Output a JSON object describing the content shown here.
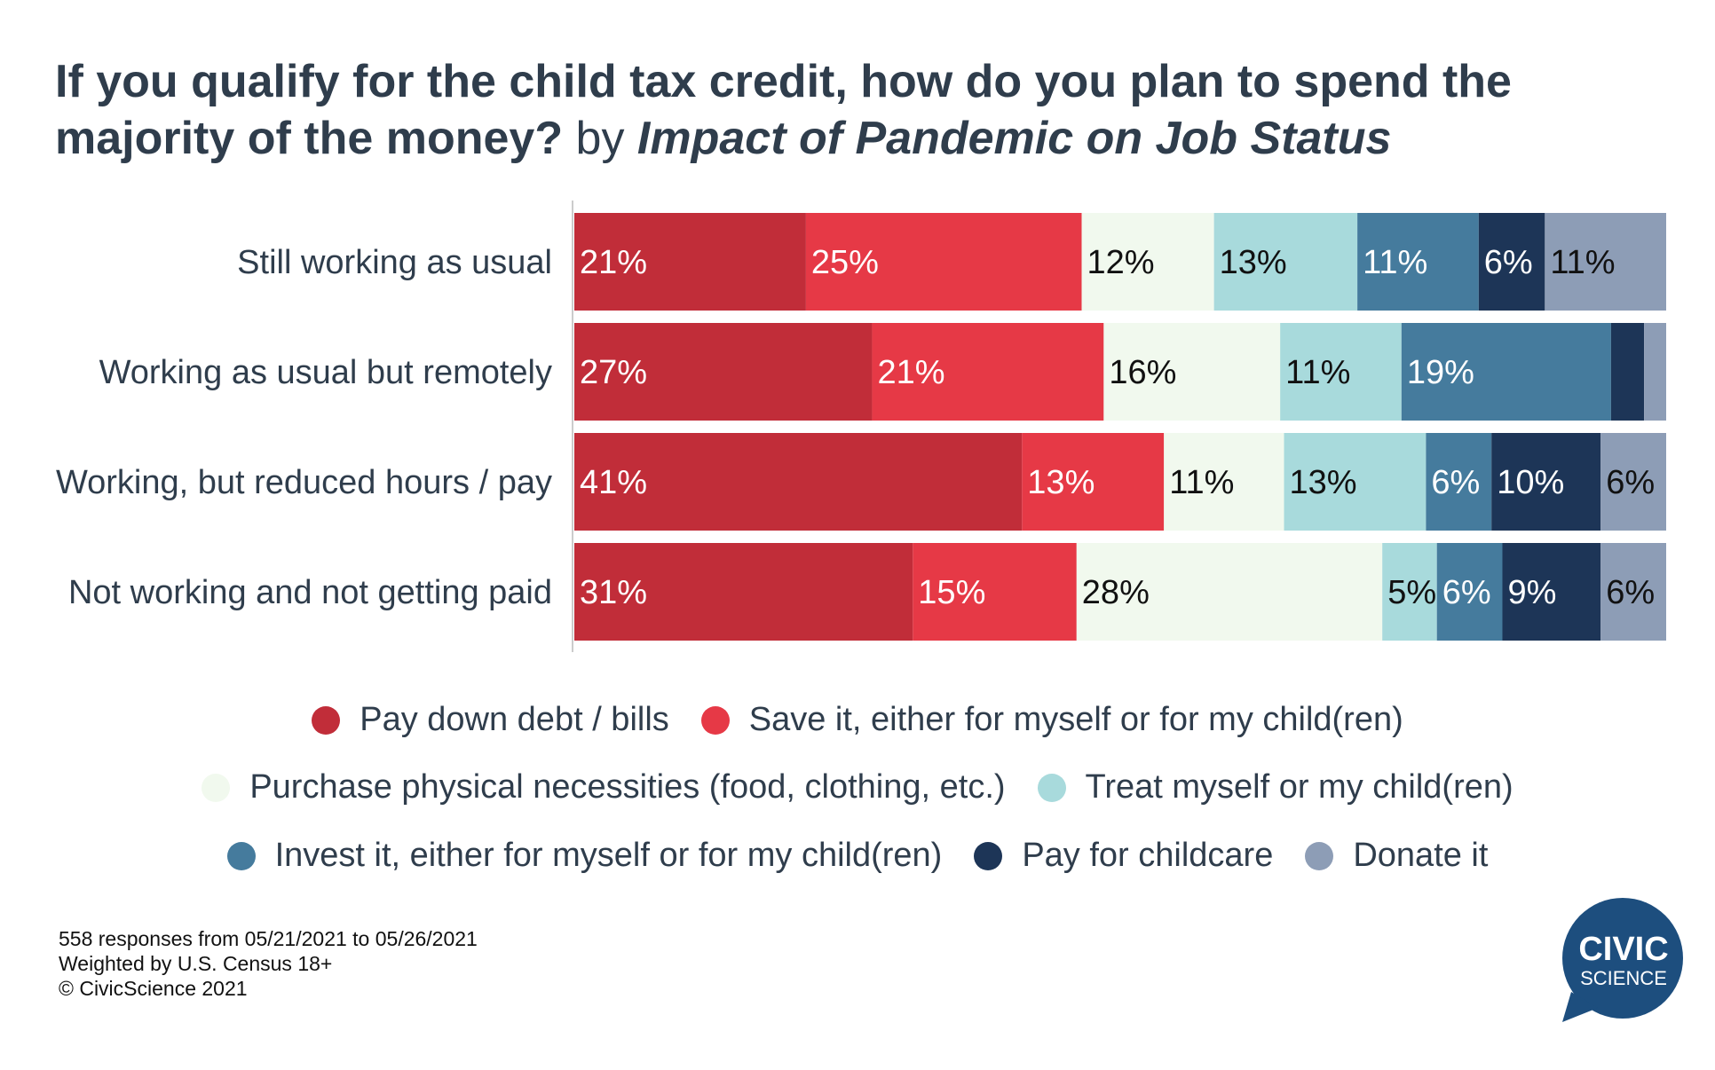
{
  "title": {
    "question": "If you qualify for the child tax credit, how do you plan to spend the majority of the money?",
    "by": "by",
    "dimension": "Impact of Pandemic on Job Status"
  },
  "chart_data": {
    "type": "bar",
    "orientation": "horizontal",
    "stacked": true,
    "normalized_to_100": true,
    "categories": [
      "Still working as usual",
      "Working as usual but remotely",
      "Working, but reduced hours / pay",
      "Not working and not getting paid"
    ],
    "series": [
      {
        "name": "Pay down debt / bills",
        "color": "#c12d39",
        "label_color": "#ffffff",
        "values": [
          21,
          27,
          41,
          31
        ],
        "labels": [
          "21%",
          "27%",
          "41%",
          "31%"
        ]
      },
      {
        "name": "Save it, either for myself or for my child(ren)",
        "color": "#e63946",
        "label_color": "#ffffff",
        "values": [
          25,
          21,
          13,
          15
        ],
        "labels": [
          "25%",
          "21%",
          "13%",
          "15%"
        ]
      },
      {
        "name": "Purchase physical necessities (food, clothing, etc.)",
        "color": "#f1f9ee",
        "label_color": "#111111",
        "values": [
          12,
          16,
          11,
          28
        ],
        "labels": [
          "12%",
          "16%",
          "11%",
          "28%"
        ]
      },
      {
        "name": "Treat myself or my child(ren)",
        "color": "#a8dadc",
        "label_color": "#111111",
        "values": [
          13,
          11,
          13,
          5
        ],
        "labels": [
          "13%",
          "11%",
          "13%",
          "5%"
        ]
      },
      {
        "name": "Invest it, either for myself or for my child(ren)",
        "color": "#457b9d",
        "label_color": "#ffffff",
        "values": [
          11,
          19,
          6,
          6
        ],
        "labels": [
          "11%",
          "19%",
          "6%",
          "6%"
        ]
      },
      {
        "name": "Pay for childcare",
        "color": "#1d3557",
        "label_color": "#ffffff",
        "values": [
          6,
          3,
          10,
          9
        ],
        "labels": [
          "6%",
          "",
          "10%",
          "9%"
        ]
      },
      {
        "name": "Donate it",
        "color": "#8d9db6",
        "label_color": "#111111",
        "values": [
          11,
          2,
          6,
          6
        ],
        "labels": [
          "11%",
          "",
          "6%",
          "6%"
        ]
      }
    ],
    "xlim": [
      0,
      100
    ],
    "legend_position": "bottom"
  },
  "legend_rows": [
    [
      0,
      1
    ],
    [
      2,
      3
    ],
    [
      4,
      5,
      6
    ]
  ],
  "footer": {
    "line1": "558 responses from 05/21/2021 to 05/26/2021",
    "line2": "Weighted by U.S. Census 18+",
    "line3": "© CivicScience 2021"
  },
  "logo": {
    "line1": "CIVIC",
    "line2": "SCIENCE",
    "color": "#1d4e7e"
  }
}
